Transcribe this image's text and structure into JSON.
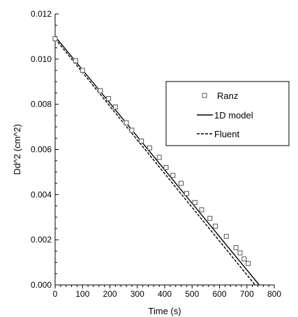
{
  "chart_data": {
    "type": "scatter",
    "title": "",
    "xlabel": "Time (s)",
    "ylabel": "Dd^2 (cm^2)",
    "xlim": [
      0,
      800
    ],
    "ylim": [
      0,
      0.012
    ],
    "xticks": [
      0,
      100,
      200,
      300,
      400,
      500,
      600,
      700,
      800
    ],
    "xtick_labels": [
      "0",
      "100",
      "200",
      "300",
      "400",
      "500",
      "600",
      "700",
      "800"
    ],
    "yticks": [
      0,
      0.002,
      0.004,
      0.006,
      0.008,
      0.01,
      0.012
    ],
    "ytick_labels": [
      "0.000",
      "0.002",
      "0.004",
      "0.006",
      "0.008",
      "0.010",
      "0.012"
    ],
    "grid": false,
    "legend_position": "right",
    "series": [
      {
        "name": "Ranz",
        "type": "scatter",
        "marker": "open-square",
        "color": "#555555",
        "x": [
          0,
          75,
          100,
          165,
          195,
          220,
          260,
          280,
          315,
          345,
          380,
          405,
          430,
          460,
          480,
          510,
          535,
          565,
          585,
          625,
          660,
          675,
          690,
          705
        ],
        "y": [
          0.0109,
          0.00993,
          0.0095,
          0.0086,
          0.00825,
          0.00788,
          0.00718,
          0.00685,
          0.00637,
          0.00607,
          0.00565,
          0.0052,
          0.00485,
          0.0045,
          0.00405,
          0.00365,
          0.00333,
          0.00295,
          0.0026,
          0.00215,
          0.00165,
          0.00142,
          0.00115,
          0.00095
        ]
      },
      {
        "name": "1D model",
        "type": "line",
        "dash": "solid",
        "color": "#000000",
        "x": [
          0,
          745
        ],
        "y": [
          0.011,
          0.0
        ]
      },
      {
        "name": "Fluent",
        "type": "line",
        "dash": "dashed",
        "color": "#000000",
        "x": [
          0,
          730
        ],
        "y": [
          0.0109,
          0.0
        ]
      }
    ]
  }
}
